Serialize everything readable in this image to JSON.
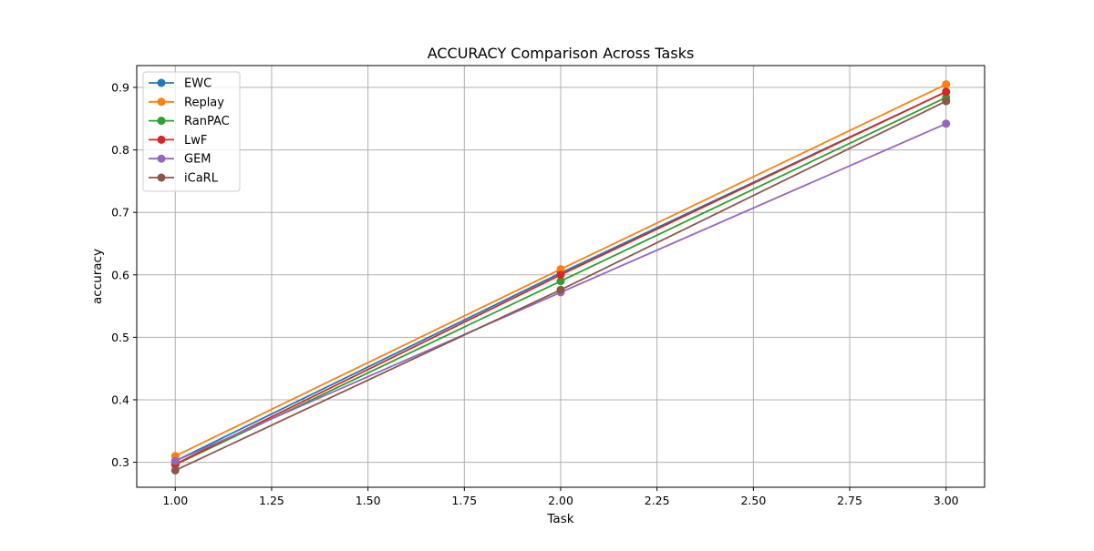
{
  "chart_data": {
    "type": "line",
    "title": "ACCURACY Comparison Across Tasks",
    "xlabel": "Task",
    "ylabel": "accuracy",
    "x": [
      1.0,
      2.0,
      3.0
    ],
    "xlim": [
      0.9,
      3.1
    ],
    "ylim": [
      0.26,
      0.935
    ],
    "xticks": [
      1.0,
      1.25,
      1.5,
      1.75,
      2.0,
      2.25,
      2.5,
      2.75,
      3.0
    ],
    "xtick_labels": [
      "1.00",
      "1.25",
      "1.50",
      "1.75",
      "2.00",
      "2.25",
      "2.50",
      "2.75",
      "3.00"
    ],
    "yticks": [
      0.3,
      0.4,
      0.5,
      0.6,
      0.7,
      0.8,
      0.9
    ],
    "ytick_labels": [
      "0.3",
      "0.4",
      "0.5",
      "0.6",
      "0.7",
      "0.8",
      "0.9"
    ],
    "grid": true,
    "legend_position": "top-left",
    "series": [
      {
        "name": "EWC",
        "color": "#1f77b4",
        "values": [
          0.302,
          0.603,
          0.893
        ]
      },
      {
        "name": "Replay",
        "color": "#ff7f0e",
        "values": [
          0.31,
          0.609,
          0.905
        ]
      },
      {
        "name": "RanPAC",
        "color": "#2ca02c",
        "values": [
          0.296,
          0.59,
          0.884
        ]
      },
      {
        "name": "LwF",
        "color": "#d62728",
        "values": [
          0.297,
          0.6,
          0.893
        ]
      },
      {
        "name": "GEM",
        "color": "#9467bd",
        "values": [
          0.302,
          0.572,
          0.842
        ]
      },
      {
        "name": "iCaRL",
        "color": "#8c564b",
        "values": [
          0.287,
          0.576,
          0.878
        ]
      }
    ]
  }
}
